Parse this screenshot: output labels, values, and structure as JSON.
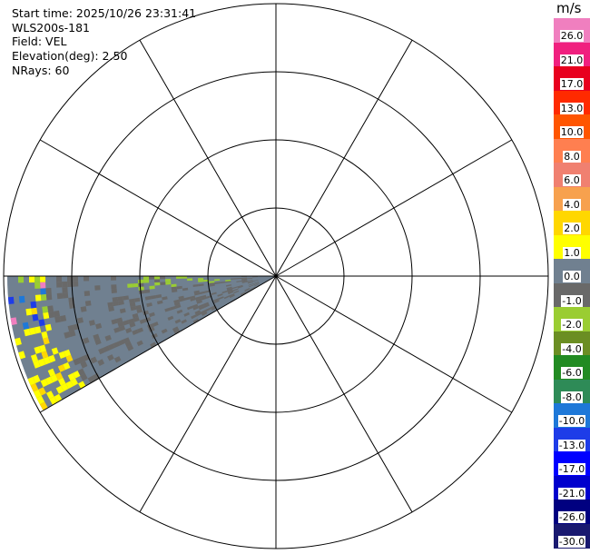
{
  "info": {
    "start_time": "Start time: 2025/10/26 23:31:41",
    "station": "WLS200s-181",
    "field": "Field: VEL",
    "elevation": "Elevation(deg): 2.50",
    "nrays": "NRays: 60"
  },
  "colorbar": {
    "unit": "m/s",
    "labels": [
      "26.0",
      "21.0",
      "17.0",
      "13.0",
      "10.0",
      "8.0",
      "6.0",
      "4.0",
      "2.0",
      "1.0",
      "0.0",
      "-1.0",
      "-2.0",
      "-4.0",
      "-6.0",
      "-8.0",
      "-10.0",
      "-13.0",
      "-17.0",
      "-21.0",
      "-26.0",
      "-30.0"
    ],
    "colors": [
      "#f07fbf",
      "#f0207f",
      "#e8001e",
      "#ff2a00",
      "#ff5500",
      "#ff7f50",
      "#f08070",
      "#f7a14e",
      "#ffd700",
      "#ffff00",
      "#708090",
      "#696969",
      "#9acd32",
      "#6b8e23",
      "#228b22",
      "#2e8b57",
      "#1e78d8",
      "#1e3ce8",
      "#0000ff",
      "#0000cd",
      "#000080",
      "#191970"
    ]
  },
  "chart_data": {
    "type": "ppi",
    "field": "VEL",
    "units": "m/s",
    "elevation_deg": 2.5,
    "n_rays": 60,
    "sector_azimuth_deg": [
      240,
      270
    ],
    "range_rings": 4,
    "spokes_deg": [
      0,
      30,
      60,
      90,
      120,
      150,
      180,
      210,
      240,
      270,
      300,
      330
    ]
  }
}
